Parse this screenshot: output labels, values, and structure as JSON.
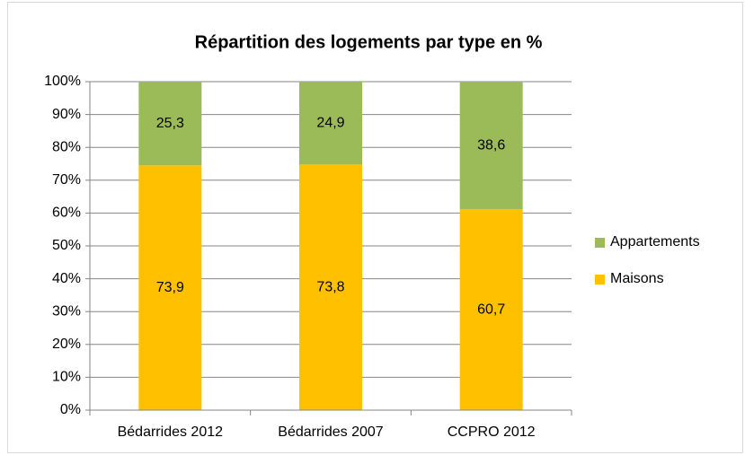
{
  "chart_data": {
    "type": "bar",
    "stacking": "percent",
    "title": "Répartition des logements par type en %",
    "categories": [
      "Bédarrides 2012",
      "Bédarrides 2007",
      "CCPRO 2012"
    ],
    "series": [
      {
        "name": "Maisons",
        "color": "#ffc000",
        "values": [
          73.9,
          73.8,
          60.7
        ],
        "value_labels": [
          "73,9",
          "73,8",
          "60,7"
        ]
      },
      {
        "name": "Appartements",
        "color": "#9bbb59",
        "values": [
          25.3,
          24.9,
          38.6
        ],
        "value_labels": [
          "25,3",
          "24,9",
          "38,6"
        ]
      }
    ],
    "ylim": [
      0,
      100
    ],
    "yticks": [
      {
        "value": 0,
        "label": "0%"
      },
      {
        "value": 10,
        "label": "10%"
      },
      {
        "value": 20,
        "label": "20%"
      },
      {
        "value": 30,
        "label": "30%"
      },
      {
        "value": 40,
        "label": "40%"
      },
      {
        "value": 50,
        "label": "50%"
      },
      {
        "value": 60,
        "label": "60%"
      },
      {
        "value": 70,
        "label": "70%"
      },
      {
        "value": 80,
        "label": "80%"
      },
      {
        "value": 90,
        "label": "90%"
      },
      {
        "value": 100,
        "label": "100%"
      }
    ],
    "grid": true,
    "legend": "right"
  }
}
